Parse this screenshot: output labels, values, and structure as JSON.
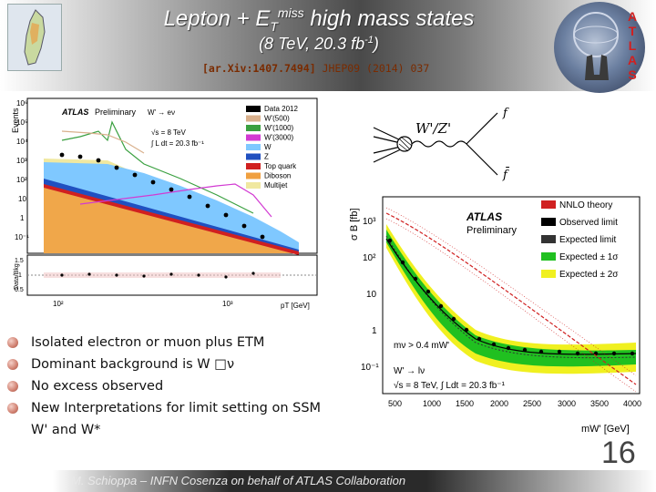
{
  "header": {
    "title_line1": "Lepton + E",
    "title_sub": "T",
    "title_sup": "miss",
    "title_rest": " high mass states",
    "title_line2_pre": "(8 TeV, 20.3 fb",
    "title_line2_sup": "-1",
    "title_line2_post": ")",
    "ref_bracket": "[ar.Xiv:1407.7494]",
    "ref_journal": "JHEP09 (2014) 037",
    "atlas_letters": [
      "A",
      "T",
      "L",
      "A",
      "S"
    ]
  },
  "left_plot": {
    "ylabel": "Events",
    "atlas": "ATLAS",
    "preliminary": "Preliminary",
    "process": "W' → eν",
    "energy": "√s = 8 TeV",
    "lumi": "∫ L dt = 20.3 fb⁻¹",
    "ratio_label": "Data/Bkg",
    "xlabel": "pT [GeV]",
    "ytick_labels": [
      "10⁶",
      "10⁵",
      "10⁴",
      "10³",
      "10²",
      "10",
      "1",
      "10⁻¹"
    ],
    "ratio_ticks": [
      "1.5",
      "1",
      "0.5"
    ],
    "xtick_labels": [
      "10²",
      "10³"
    ],
    "legend": [
      {
        "label": "Data 2012",
        "color": "#000000"
      },
      {
        "label": "W'(500)",
        "color": "#d9b08c"
      },
      {
        "label": "W'(1000)",
        "color": "#3aa040"
      },
      {
        "label": "W'(3000)",
        "color": "#d23ad2"
      },
      {
        "label": "W",
        "color": "#7fc8ff"
      },
      {
        "label": "Z",
        "color": "#2050c0"
      },
      {
        "label": "Top quark",
        "color": "#d02020"
      },
      {
        "label": "Diboson",
        "color": "#f0a040"
      },
      {
        "label": "Multijet",
        "color": "#f0e8a0"
      }
    ]
  },
  "feynman": {
    "label": "W'/Z'",
    "f1": "f",
    "f2": "f̄"
  },
  "right_plot": {
    "ylabel": "σ B [fb]",
    "atlas": "ATLAS",
    "preliminary": "Preliminary",
    "legend": [
      {
        "label": "NNLO theory",
        "color": "#d02020"
      },
      {
        "label": "Observed limit",
        "color": "#000000"
      },
      {
        "label": "Expected  limit",
        "color": "#333333"
      },
      {
        "label": "Expected ± 1σ",
        "color": "#20c020"
      },
      {
        "label": "Expected ± 2σ",
        "color": "#f0f020"
      }
    ],
    "mass_cut": "mν > 0.4 mW'",
    "process": "W' → lν",
    "conditions": "√s = 8 TeV,  ∫ Ldt = 20.3 fb⁻¹",
    "xlabel": "mW' [GeV]",
    "ytick_labels": [
      "10³",
      "10²",
      "10",
      "1",
      "10⁻¹"
    ],
    "xtick_labels": [
      "500",
      "1000",
      "1500",
      "2000",
      "2500",
      "3000",
      "3500",
      "4000"
    ]
  },
  "bullets": [
    "Isolated electron or muon plus ETM",
    "Dominant background is W □ν",
    "No excess observed",
    "New Interpretations for limit setting on SSM",
    "W' and W*"
  ],
  "footer": {
    "text": "M. Schioppa – INFN Cosenza on behalf of ATLAS Collaboration",
    "page": "16"
  }
}
